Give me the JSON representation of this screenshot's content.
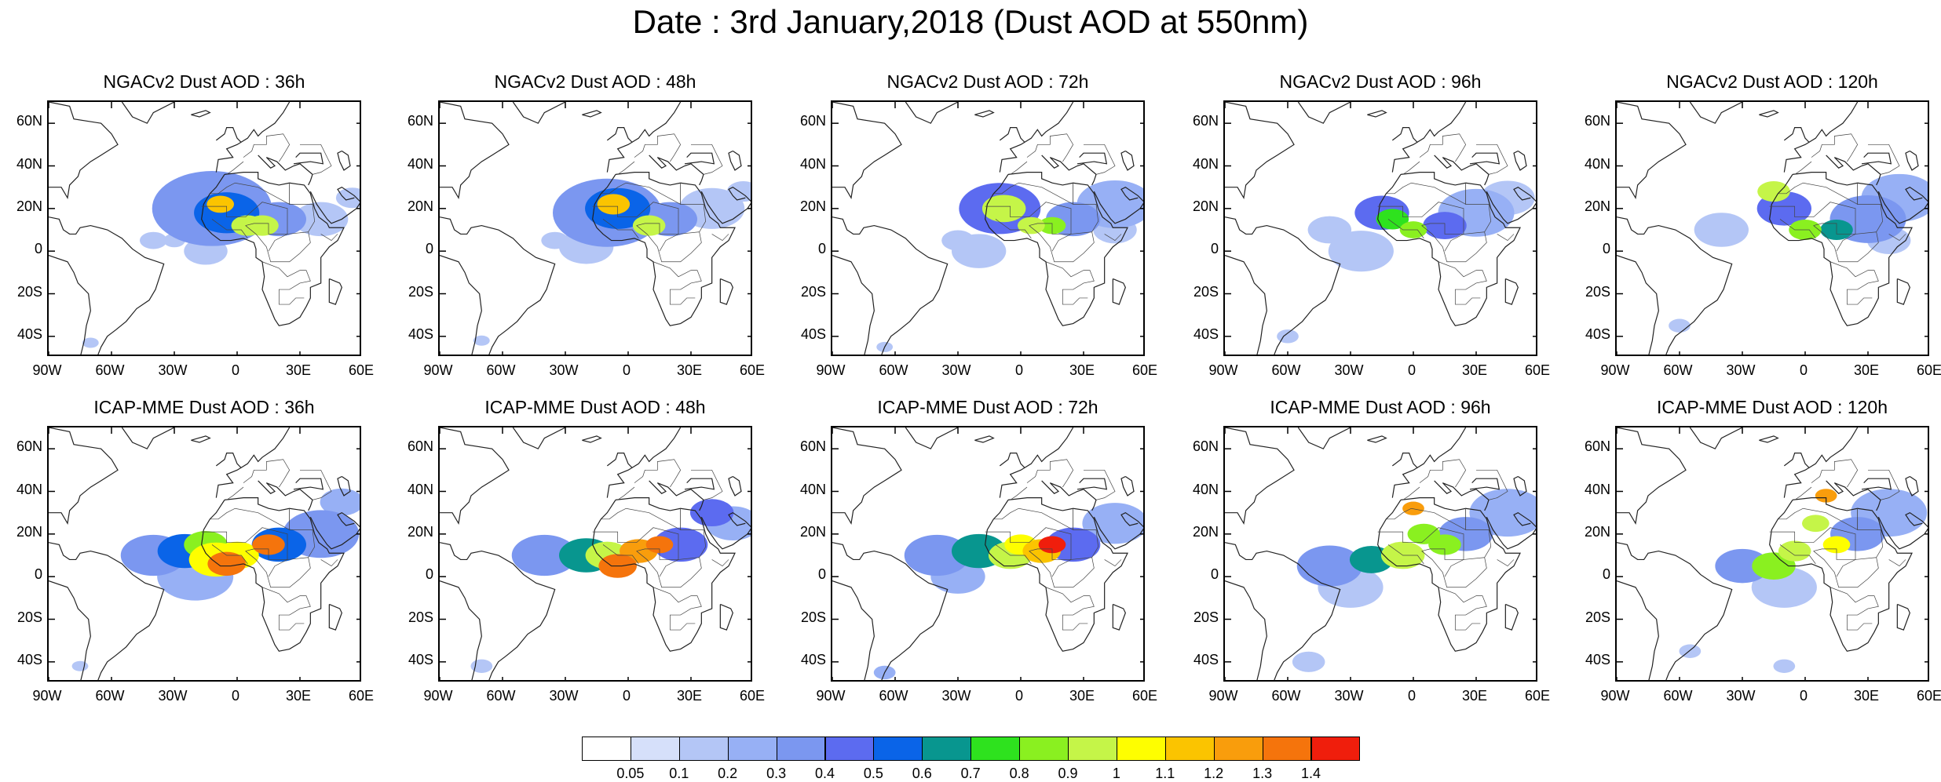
{
  "title": "Date : 3rd January,2018 (Dust AOD at 550nm)",
  "panels": [
    {
      "title": "NGACv2 Dust AOD : 36h",
      "model": "NGACv2",
      "lead": "36h",
      "blobs": [
        [
          -30,
          5,
          4,
          0.15
        ],
        [
          -12,
          20,
          22,
          0.3
        ],
        [
          -5,
          18,
          12,
          0.5
        ],
        [
          -8,
          22,
          5,
          1.1
        ],
        [
          5,
          12,
          6,
          0.9
        ],
        [
          12,
          12,
          6,
          0.9
        ],
        [
          -40,
          5,
          5,
          0.12
        ],
        [
          20,
          15,
          10,
          0.3
        ],
        [
          40,
          15,
          10,
          0.15
        ],
        [
          55,
          25,
          6,
          0.12
        ],
        [
          -70,
          -43,
          3,
          0.1
        ],
        [
          -15,
          0,
          8,
          0.15
        ]
      ]
    },
    {
      "title": "NGACv2 Dust AOD : 48h",
      "model": "NGACv2",
      "lead": "48h",
      "blobs": [
        [
          -35,
          5,
          5,
          0.12
        ],
        [
          -10,
          18,
          20,
          0.3
        ],
        [
          -5,
          20,
          12,
          0.5
        ],
        [
          -7,
          22,
          6,
          1.1
        ],
        [
          10,
          12,
          6,
          0.9
        ],
        [
          20,
          15,
          10,
          0.3
        ],
        [
          40,
          20,
          12,
          0.15
        ],
        [
          55,
          28,
          6,
          0.12
        ],
        [
          -70,
          -42,
          3,
          0.12
        ],
        [
          -20,
          2,
          10,
          0.15
        ]
      ]
    },
    {
      "title": "NGACv2 Dust AOD : 72h",
      "model": "NGACv2",
      "lead": "72h",
      "blobs": [
        [
          -30,
          5,
          6,
          0.15
        ],
        [
          -10,
          20,
          15,
          0.4
        ],
        [
          -8,
          20,
          8,
          0.9
        ],
        [
          5,
          12,
          5,
          0.9
        ],
        [
          15,
          12,
          5,
          0.8
        ],
        [
          25,
          15,
          10,
          0.3
        ],
        [
          45,
          22,
          14,
          0.2
        ],
        [
          45,
          10,
          8,
          0.15
        ],
        [
          -65,
          -45,
          3,
          0.15
        ],
        [
          -20,
          0,
          10,
          0.15
        ]
      ]
    },
    {
      "title": "NGACv2 Dust AOD : 96h",
      "model": "NGACv2",
      "lead": "96h",
      "blobs": [
        [
          -40,
          10,
          8,
          0.15
        ],
        [
          -15,
          18,
          10,
          0.4
        ],
        [
          -10,
          15,
          6,
          0.7
        ],
        [
          0,
          10,
          5,
          0.8
        ],
        [
          15,
          12,
          8,
          0.4
        ],
        [
          30,
          18,
          14,
          0.25
        ],
        [
          45,
          25,
          10,
          0.15
        ],
        [
          -60,
          -40,
          4,
          0.15
        ],
        [
          -25,
          0,
          12,
          0.15
        ]
      ]
    },
    {
      "title": "NGACv2 Dust AOD : 120h",
      "model": "NGACv2",
      "lead": "120h",
      "blobs": [
        [
          -15,
          28,
          6,
          0.9
        ],
        [
          -10,
          20,
          10,
          0.4
        ],
        [
          0,
          10,
          6,
          0.8
        ],
        [
          15,
          10,
          6,
          0.6
        ],
        [
          30,
          15,
          14,
          0.3
        ],
        [
          45,
          25,
          14,
          0.2
        ],
        [
          -40,
          10,
          10,
          0.15
        ],
        [
          -60,
          -35,
          4,
          0.12
        ],
        [
          40,
          5,
          8,
          0.15
        ]
      ]
    },
    {
      "title": "ICAP-MME Dust AOD : 36h",
      "model": "ICAP-MME",
      "lead": "36h",
      "blobs": [
        [
          -40,
          10,
          12,
          0.3
        ],
        [
          -25,
          12,
          10,
          0.5
        ],
        [
          -15,
          15,
          8,
          0.8
        ],
        [
          -10,
          8,
          10,
          1.0
        ],
        [
          -5,
          6,
          7,
          1.3
        ],
        [
          0,
          10,
          8,
          1.0
        ],
        [
          15,
          15,
          6,
          1.3
        ],
        [
          20,
          15,
          10,
          0.5
        ],
        [
          40,
          20,
          14,
          0.3
        ],
        [
          50,
          35,
          8,
          0.2
        ],
        [
          -75,
          -42,
          3,
          0.15
        ],
        [
          -20,
          0,
          14,
          0.2
        ]
      ]
    },
    {
      "title": "ICAP-MME Dust AOD : 48h",
      "model": "ICAP-MME",
      "lead": "48h",
      "blobs": [
        [
          -40,
          10,
          12,
          0.3
        ],
        [
          -20,
          10,
          10,
          0.6
        ],
        [
          -10,
          10,
          8,
          0.9
        ],
        [
          -5,
          5,
          7,
          1.3
        ],
        [
          5,
          12,
          7,
          1.2
        ],
        [
          15,
          15,
          5,
          1.3
        ],
        [
          25,
          15,
          10,
          0.4
        ],
        [
          40,
          30,
          8,
          0.4
        ],
        [
          50,
          25,
          10,
          0.2
        ],
        [
          -70,
          -42,
          4,
          0.15
        ]
      ]
    },
    {
      "title": "ICAP-MME Dust AOD : 72h",
      "model": "ICAP-MME",
      "lead": "72h",
      "blobs": [
        [
          -40,
          10,
          12,
          0.3
        ],
        [
          -20,
          12,
          10,
          0.6
        ],
        [
          -5,
          10,
          8,
          0.9
        ],
        [
          0,
          15,
          6,
          1.0
        ],
        [
          10,
          12,
          7,
          1.1
        ],
        [
          15,
          15,
          5,
          1.4
        ],
        [
          25,
          15,
          10,
          0.4
        ],
        [
          45,
          25,
          12,
          0.2
        ],
        [
          -65,
          -45,
          4,
          0.2
        ],
        [
          -30,
          0,
          10,
          0.2
        ]
      ]
    },
    {
      "title": "ICAP-MME Dust AOD : 96h",
      "model": "ICAP-MME",
      "lead": "96h",
      "blobs": [
        [
          -40,
          5,
          12,
          0.3
        ],
        [
          -20,
          8,
          8,
          0.6
        ],
        [
          -5,
          10,
          8,
          0.9
        ],
        [
          0,
          32,
          4,
          1.2
        ],
        [
          5,
          20,
          6,
          0.8
        ],
        [
          15,
          15,
          6,
          0.8
        ],
        [
          25,
          20,
          10,
          0.3
        ],
        [
          45,
          30,
          14,
          0.2
        ],
        [
          -50,
          -40,
          6,
          0.15
        ],
        [
          -30,
          -5,
          12,
          0.15
        ]
      ]
    },
    {
      "title": "ICAP-MME Dust AOD : 120h",
      "model": "ICAP-MME",
      "lead": "120h",
      "blobs": [
        [
          -30,
          5,
          10,
          0.3
        ],
        [
          -15,
          5,
          8,
          0.8
        ],
        [
          -5,
          12,
          6,
          0.9
        ],
        [
          5,
          25,
          5,
          0.9
        ],
        [
          10,
          38,
          4,
          1.2
        ],
        [
          15,
          15,
          5,
          1.0
        ],
        [
          25,
          20,
          10,
          0.3
        ],
        [
          40,
          30,
          14,
          0.2
        ],
        [
          -55,
          -35,
          4,
          0.12
        ],
        [
          -10,
          -5,
          12,
          0.15
        ],
        [
          -10,
          -42,
          4,
          0.12
        ]
      ]
    }
  ],
  "axes": {
    "lat_ticks": [
      "60N",
      "40N",
      "20N",
      "0",
      "20S",
      "40S"
    ],
    "lat_values": [
      60,
      40,
      20,
      0,
      -20,
      -40
    ],
    "lon_ticks": [
      "90W",
      "60W",
      "30W",
      "0",
      "30E",
      "60E"
    ],
    "lon_values": [
      -90,
      -60,
      -30,
      0,
      30,
      60
    ],
    "lon_range": [
      -90,
      60
    ],
    "lat_range": [
      -50,
      70
    ]
  },
  "colorbar": {
    "labels": [
      "0.05",
      "0.1",
      "0.2",
      "0.3",
      "0.4",
      "0.5",
      "0.6",
      "0.7",
      "0.8",
      "0.9",
      "1",
      "1.1",
      "1.2",
      "1.3",
      "1.4"
    ],
    "thresholds": [
      0.05,
      0.1,
      0.2,
      0.3,
      0.4,
      0.5,
      0.6,
      0.7,
      0.8,
      0.9,
      1,
      1.1,
      1.2,
      1.3,
      1.4
    ],
    "colors": [
      "#ffffff",
      "#d6e0fa",
      "#b4c6f6",
      "#97b0f5",
      "#7b97f0",
      "#5c6bf0",
      "#0a64e8",
      "#08968f",
      "#2ee21e",
      "#8af020",
      "#c5f548",
      "#fefe00",
      "#fbc400",
      "#f99d0c",
      "#f5740c",
      "#f01e0c"
    ]
  }
}
